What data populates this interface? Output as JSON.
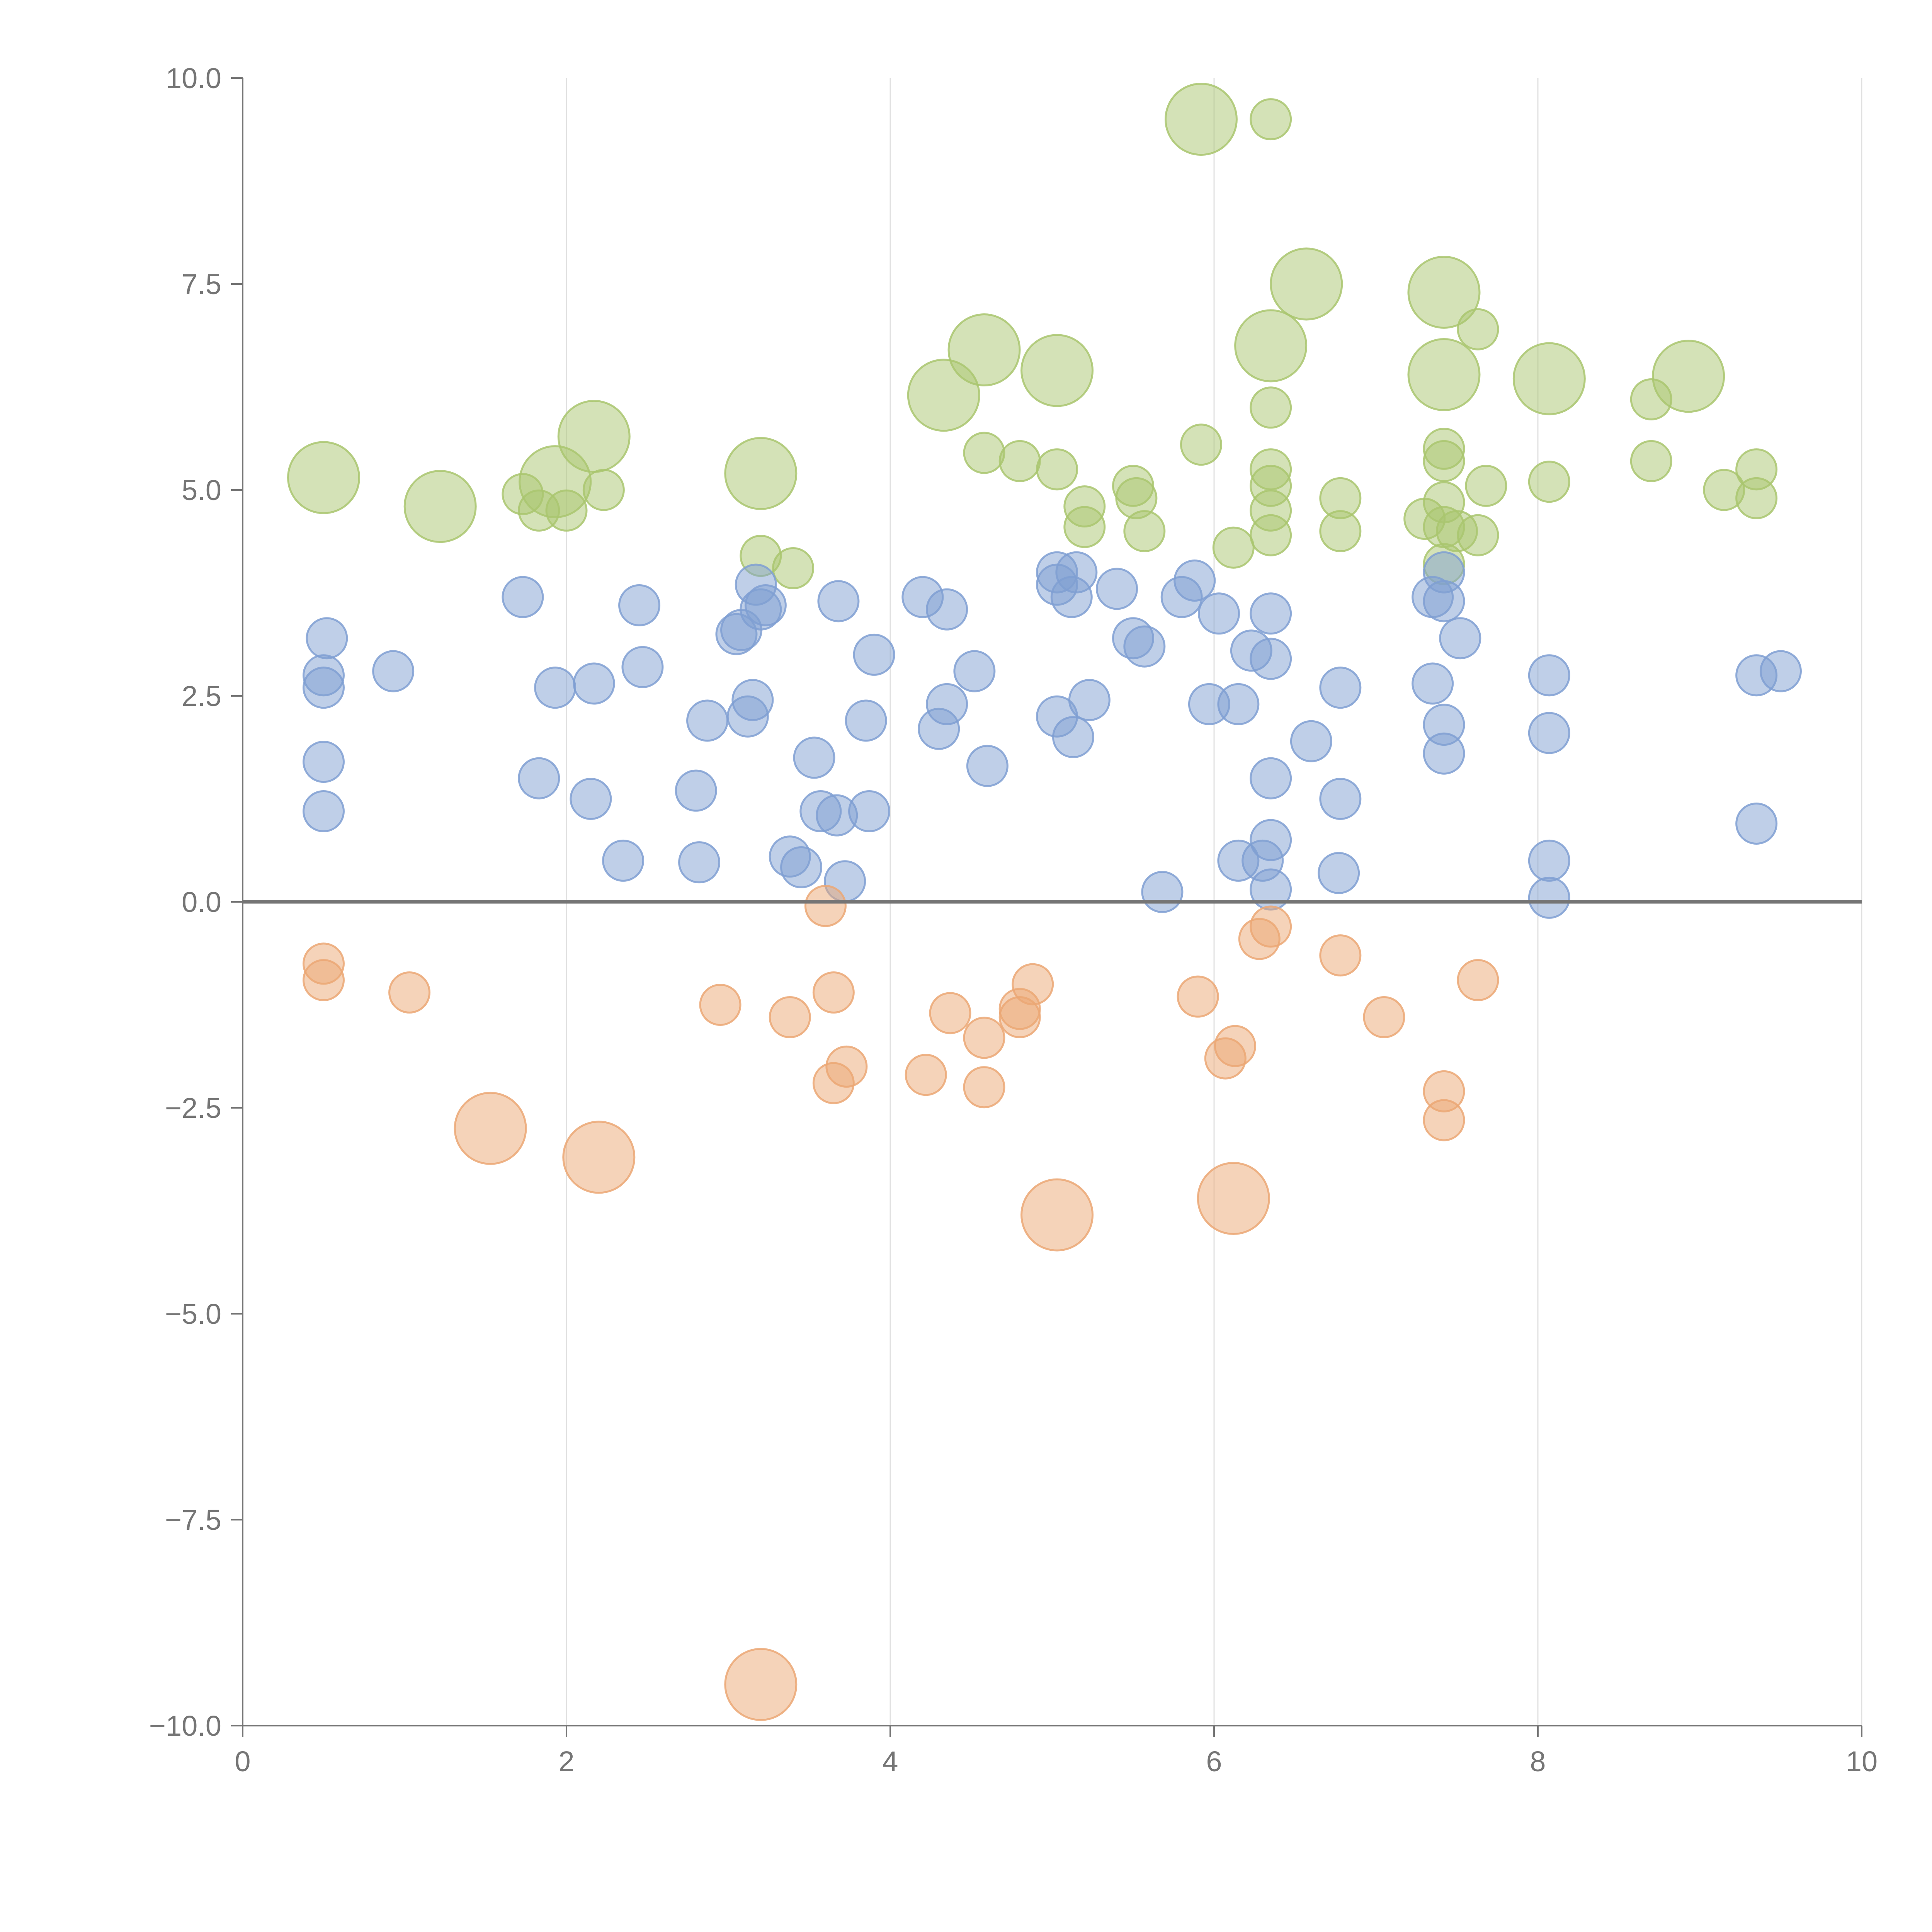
{
  "chart_data": {
    "type": "scatter",
    "title": "",
    "xlabel": "",
    "ylabel": "",
    "xlim": [
      0,
      10
    ],
    "ylim": [
      -10,
      10
    ],
    "x_ticks": [
      0,
      2,
      4,
      6,
      8,
      10
    ],
    "x_tick_labels": [
      "0",
      "2",
      "4",
      "6",
      "8",
      "10"
    ],
    "y_ticks": [
      10,
      7.5,
      5,
      2.5,
      0,
      -2.5,
      -5,
      -7.5,
      -10
    ],
    "y_tick_labels": [
      "10.0",
      "7.5",
      "5.0",
      "2.5",
      "0.0",
      "−2.5",
      "−5.0",
      "−7.5",
      "−10.0"
    ],
    "grid": "vertical lines at x ticks",
    "reference_line": 0,
    "legend": "none",
    "series": [
      {
        "name": "green",
        "color": "#a9c66f",
        "points": [
          [
            5.92,
            9.5,
            2
          ],
          [
            6.35,
            9.5,
            1
          ],
          [
            6.57,
            7.5,
            2
          ],
          [
            7.42,
            7.4,
            2
          ],
          [
            7.63,
            6.95,
            1
          ],
          [
            6.35,
            6.75,
            2
          ],
          [
            4.58,
            6.7,
            2
          ],
          [
            4.33,
            6.15,
            2
          ],
          [
            5.03,
            6.45,
            2
          ],
          [
            7.42,
            6.4,
            2
          ],
          [
            8.07,
            6.35,
            2
          ],
          [
            8.93,
            6.38,
            2
          ],
          [
            8.7,
            6.1,
            1
          ],
          [
            6.35,
            6.0,
            1
          ],
          [
            2.17,
            5.65,
            2
          ],
          [
            5.92,
            5.55,
            1
          ],
          [
            4.58,
            5.45,
            1
          ],
          [
            4.8,
            5.35,
            1
          ],
          [
            5.03,
            5.25,
            1
          ],
          [
            3.2,
            5.2,
            2
          ],
          [
            0.5,
            5.15,
            2
          ],
          [
            1.93,
            5.1,
            2
          ],
          [
            2.23,
            5.0,
            1
          ],
          [
            1.73,
            4.95,
            1
          ],
          [
            1.22,
            4.8,
            2
          ],
          [
            1.83,
            4.75,
            1
          ],
          [
            2.0,
            4.75,
            1
          ],
          [
            6.35,
            5.25,
            1
          ],
          [
            6.35,
            5.05,
            1
          ],
          [
            5.5,
            5.05,
            1
          ],
          [
            5.52,
            4.9,
            1
          ],
          [
            5.2,
            4.8,
            1
          ],
          [
            5.2,
            4.55,
            1
          ],
          [
            5.57,
            4.5,
            1
          ],
          [
            6.35,
            4.75,
            1
          ],
          [
            6.35,
            4.45,
            1
          ],
          [
            6.12,
            4.3,
            1
          ],
          [
            6.78,
            4.9,
            1
          ],
          [
            6.78,
            4.5,
            1
          ],
          [
            7.42,
            5.5,
            1
          ],
          [
            7.42,
            5.35,
            1
          ],
          [
            7.42,
            4.85,
            1
          ],
          [
            7.3,
            4.65,
            1
          ],
          [
            7.42,
            4.55,
            1
          ],
          [
            7.5,
            4.5,
            1
          ],
          [
            7.63,
            4.45,
            1
          ],
          [
            7.42,
            4.1,
            1
          ],
          [
            7.68,
            5.05,
            1
          ],
          [
            8.07,
            5.1,
            1
          ],
          [
            8.7,
            5.35,
            1
          ],
          [
            9.15,
            5.0,
            1
          ],
          [
            9.35,
            5.25,
            1
          ],
          [
            9.35,
            4.9,
            1
          ],
          [
            3.2,
            4.2,
            1
          ],
          [
            3.4,
            4.05,
            1
          ]
        ]
      },
      {
        "name": "blue",
        "color": "#7f9fd2",
        "points": [
          [
            0.52,
            3.2
          ],
          [
            0.5,
            2.75
          ],
          [
            0.5,
            2.6
          ],
          [
            0.5,
            1.7
          ],
          [
            0.5,
            1.1
          ],
          [
            0.93,
            2.8
          ],
          [
            1.73,
            3.7
          ],
          [
            1.83,
            1.5
          ],
          [
            1.93,
            2.6
          ],
          [
            2.15,
            1.25
          ],
          [
            2.17,
            2.65
          ],
          [
            2.35,
            0.5
          ],
          [
            2.45,
            3.6
          ],
          [
            2.47,
            2.85
          ],
          [
            2.8,
            1.35
          ],
          [
            2.82,
            0.48
          ],
          [
            2.87,
            2.2
          ],
          [
            3.05,
            3.25
          ],
          [
            3.08,
            3.3
          ],
          [
            3.12,
            2.25
          ],
          [
            3.15,
            2.45
          ],
          [
            3.17,
            3.85
          ],
          [
            3.2,
            3.55
          ],
          [
            3.23,
            3.6
          ],
          [
            3.38,
            0.55
          ],
          [
            3.45,
            0.42
          ],
          [
            3.53,
            1.75
          ],
          [
            3.57,
            1.1
          ],
          [
            3.67,
            1.05
          ],
          [
            3.68,
            3.65
          ],
          [
            3.72,
            0.25
          ],
          [
            3.85,
            2.2
          ],
          [
            3.87,
            1.1
          ],
          [
            3.9,
            3.0
          ],
          [
            4.2,
            3.7
          ],
          [
            4.3,
            2.1
          ],
          [
            4.35,
            2.4
          ],
          [
            4.35,
            3.55
          ],
          [
            4.52,
            2.8
          ],
          [
            4.6,
            1.65
          ],
          [
            5.03,
            4.0
          ],
          [
            5.03,
            3.85
          ],
          [
            5.03,
            2.25
          ],
          [
            5.15,
            4.0
          ],
          [
            5.12,
            3.7
          ],
          [
            5.13,
            2.0
          ],
          [
            5.23,
            2.45
          ],
          [
            5.4,
            3.8
          ],
          [
            5.5,
            3.2
          ],
          [
            5.57,
            3.1
          ],
          [
            5.68,
            0.12
          ],
          [
            5.8,
            3.7
          ],
          [
            5.88,
            3.9
          ],
          [
            5.97,
            2.4
          ],
          [
            6.03,
            3.5
          ],
          [
            6.15,
            2.4
          ],
          [
            6.15,
            0.5
          ],
          [
            6.23,
            3.05
          ],
          [
            6.3,
            0.5
          ],
          [
            6.35,
            3.5
          ],
          [
            6.35,
            2.95
          ],
          [
            6.35,
            1.5
          ],
          [
            6.35,
            0.75
          ],
          [
            6.35,
            0.15
          ],
          [
            6.6,
            1.95
          ],
          [
            6.77,
            0.35
          ],
          [
            6.78,
            2.6
          ],
          [
            6.78,
            1.25
          ],
          [
            7.35,
            2.65
          ],
          [
            7.35,
            3.7
          ],
          [
            7.42,
            4.0
          ],
          [
            7.42,
            3.65
          ],
          [
            7.42,
            2.15
          ],
          [
            7.42,
            1.8
          ],
          [
            7.52,
            3.2
          ],
          [
            8.07,
            2.75
          ],
          [
            8.07,
            2.05
          ],
          [
            8.07,
            0.5
          ],
          [
            8.07,
            0.05
          ],
          [
            9.35,
            2.75
          ],
          [
            9.5,
            2.8
          ],
          [
            9.35,
            0.95
          ]
        ]
      },
      {
        "name": "orange",
        "color": "#eba774",
        "points": [
          [
            0.5,
            -0.75,
            1
          ],
          [
            0.5,
            -0.95,
            1
          ],
          [
            1.03,
            -1.1,
            1
          ],
          [
            1.53,
            -2.75,
            2
          ],
          [
            2.2,
            -3.1,
            2
          ],
          [
            2.95,
            -1.25,
            1
          ],
          [
            3.2,
            -9.5,
            2
          ],
          [
            3.38,
            -1.4,
            1
          ],
          [
            3.6,
            -0.05,
            1
          ],
          [
            3.65,
            -1.1,
            1
          ],
          [
            3.65,
            -2.2,
            1
          ],
          [
            3.73,
            -2.0,
            1
          ],
          [
            4.22,
            -2.1,
            1
          ],
          [
            4.37,
            -1.35,
            1
          ],
          [
            4.58,
            -1.65,
            1
          ],
          [
            4.58,
            -2.25,
            1
          ],
          [
            4.8,
            -1.3,
            1
          ],
          [
            4.8,
            -1.4,
            1
          ],
          [
            4.88,
            -1.0,
            1
          ],
          [
            5.03,
            -3.8,
            2
          ],
          [
            5.9,
            -1.15,
            1
          ],
          [
            6.07,
            -1.9,
            1
          ],
          [
            6.13,
            -1.75,
            1
          ],
          [
            6.12,
            -3.6,
            2
          ],
          [
            6.28,
            -0.45,
            1
          ],
          [
            6.35,
            -0.3,
            1
          ],
          [
            6.78,
            -0.65,
            1
          ],
          [
            7.05,
            -1.4,
            1
          ],
          [
            7.42,
            -2.3,
            1
          ],
          [
            7.42,
            -2.65,
            1
          ],
          [
            7.63,
            -0.95,
            1
          ]
        ]
      }
    ]
  }
}
